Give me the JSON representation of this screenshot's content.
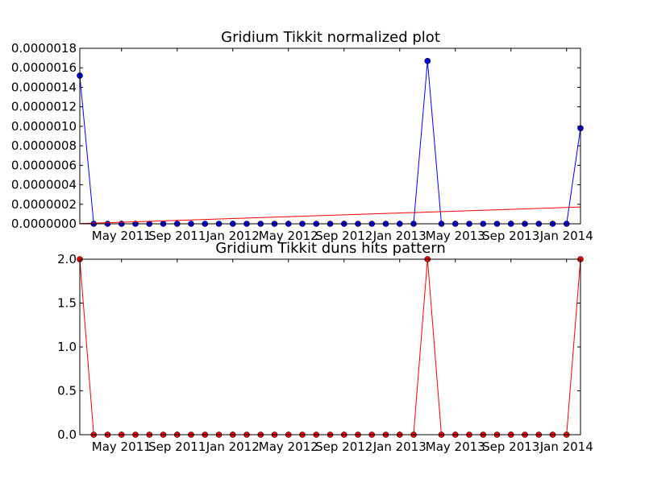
{
  "chart_data": [
    {
      "type": "line",
      "title": "Gridium Tikkit normalized plot",
      "xlabel": "",
      "ylabel": "",
      "x_tick_labels": [
        "May 2011",
        "Sep 2011",
        "Jan 2012",
        "May 2012",
        "Sep 2012",
        "Jan 2013",
        "May 2013",
        "Sep 2013",
        "Jan 2014"
      ],
      "y_tick_labels": [
        "0.0000000",
        "0.0000002",
        "0.0000004",
        "0.0000006",
        "0.0000008",
        "0.0000010",
        "0.0000012",
        "0.0000014",
        "0.0000016",
        "0.0000018"
      ],
      "ylim": [
        0,
        1.8e-06
      ],
      "grid": false,
      "legend": "none",
      "x_range": [
        "2011-02",
        "2014-02"
      ],
      "x": [
        "2011-02",
        "2011-03",
        "2011-04",
        "2011-05",
        "2011-06",
        "2011-07",
        "2011-08",
        "2011-09",
        "2011-10",
        "2011-11",
        "2011-12",
        "2012-01",
        "2012-02",
        "2012-03",
        "2012-04",
        "2012-05",
        "2012-06",
        "2012-07",
        "2012-08",
        "2012-09",
        "2012-10",
        "2012-11",
        "2012-12",
        "2013-01",
        "2013-02",
        "2013-03",
        "2013-04",
        "2013-05",
        "2013-06",
        "2013-07",
        "2013-08",
        "2013-09",
        "2013-10",
        "2013-11",
        "2013-12",
        "2014-01",
        "2014-02"
      ],
      "series": [
        {
          "color": "#0000ff",
          "marker": "circle",
          "values": [
            1.52e-06,
            0,
            0,
            0,
            0,
            0,
            0,
            0,
            0,
            0,
            0,
            0,
            0,
            0,
            0,
            0,
            0,
            0,
            0,
            0,
            0,
            0,
            0,
            0,
            0,
            1.67e-06,
            0,
            0,
            0,
            0,
            0,
            0,
            0,
            0,
            0,
            0,
            9.8e-07
          ]
        },
        {
          "color": "#ff0000",
          "marker": "none",
          "kind": "trend",
          "start": [
            "2011-02",
            2e-09
          ],
          "end": [
            "2014-02",
            1.72e-07
          ]
        }
      ]
    },
    {
      "type": "line",
      "title": "Gridium Tikkit duns hits pattern",
      "xlabel": "",
      "ylabel": "",
      "x_tick_labels": [
        "May 2011",
        "Sep 2011",
        "Jan 2012",
        "May 2012",
        "Sep 2012",
        "Jan 2013",
        "May 2013",
        "Sep 2013",
        "Jan 2014"
      ],
      "y_tick_labels": [
        "0.0",
        "0.5",
        "1.0",
        "1.5",
        "2.0"
      ],
      "ylim": [
        0,
        2.0
      ],
      "grid": false,
      "legend": "none",
      "x_range": [
        "2011-02",
        "2014-02"
      ],
      "x": [
        "2011-02",
        "2011-03",
        "2011-04",
        "2011-05",
        "2011-06",
        "2011-07",
        "2011-08",
        "2011-09",
        "2011-10",
        "2011-11",
        "2011-12",
        "2012-01",
        "2012-02",
        "2012-03",
        "2012-04",
        "2012-05",
        "2012-06",
        "2012-07",
        "2012-08",
        "2012-09",
        "2012-10",
        "2012-11",
        "2012-12",
        "2013-01",
        "2013-02",
        "2013-03",
        "2013-04",
        "2013-05",
        "2013-06",
        "2013-07",
        "2013-08",
        "2013-09",
        "2013-10",
        "2013-11",
        "2013-12",
        "2014-01",
        "2014-02"
      ],
      "series": [
        {
          "color": "#ff0000",
          "marker": "circle",
          "values": [
            2,
            0,
            0,
            0,
            0,
            0,
            0,
            0,
            0,
            0,
            0,
            0,
            0,
            0,
            0,
            0,
            0,
            0,
            0,
            0,
            0,
            0,
            0,
            0,
            0,
            2,
            0,
            0,
            0,
            0,
            0,
            0,
            0,
            0,
            0,
            0,
            2
          ]
        }
      ]
    }
  ]
}
